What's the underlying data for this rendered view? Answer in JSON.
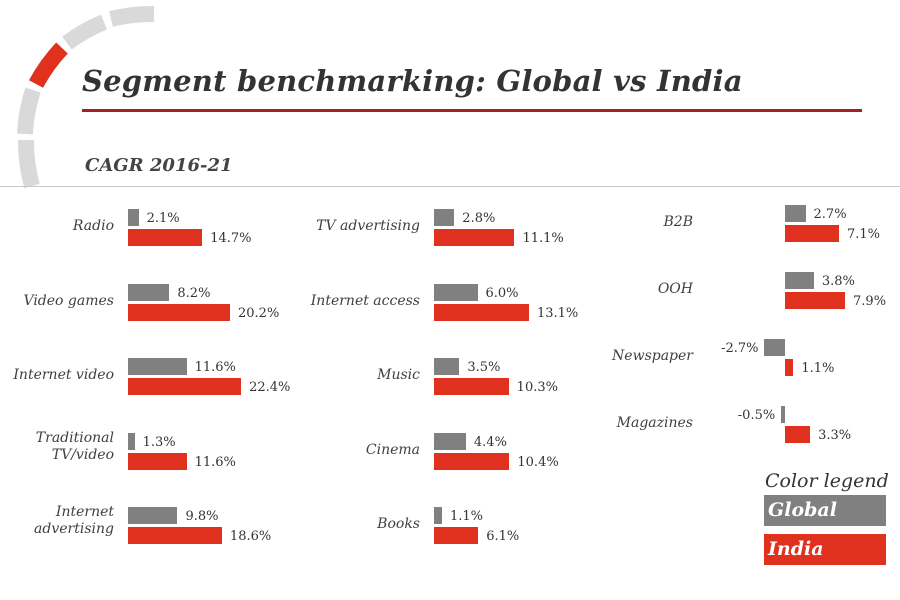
{
  "header": {
    "title": "Segment benchmarking:  Global vs India",
    "subtitle": "CAGR 2016-21"
  },
  "colors": {
    "global": "#808080",
    "india": "#e0301e",
    "title_rule": "#a32020",
    "arc_inactive": "#d9d9d9",
    "arc_active": "#e0301e"
  },
  "legend": {
    "title": "Color legend",
    "items": [
      {
        "label": "Global",
        "color": "#808080"
      },
      {
        "label": "India",
        "color": "#e0301e"
      }
    ]
  },
  "chart_data": {
    "type": "bar",
    "orientation": "horizontal",
    "title": "Segment benchmarking:  Global vs India",
    "subtitle": "CAGR 2016-21",
    "unit": "%",
    "series_names": [
      "Global",
      "India"
    ],
    "panels": [
      {
        "categories": [
          "Radio",
          "Video games",
          "Internet video",
          "Traditional TV/video",
          "Internet advertising"
        ],
        "label_lines": [
          [
            "Radio"
          ],
          [
            "Video games"
          ],
          [
            "Internet video"
          ],
          [
            "Traditional",
            "TV/video"
          ],
          [
            "Internet",
            "advertising"
          ]
        ],
        "series": [
          {
            "name": "Global",
            "values": [
              2.1,
              8.2,
              11.6,
              1.3,
              9.8
            ],
            "labels": [
              "2.1%",
              "8.2%",
              "11.6%",
              "1.3%",
              "9.8%"
            ]
          },
          {
            "name": "India",
            "values": [
              14.7,
              20.2,
              22.4,
              11.6,
              18.6
            ],
            "labels": [
              "14.7%",
              "20.2%",
              "22.4%",
              "11.6%",
              "18.6%"
            ]
          }
        ]
      },
      {
        "categories": [
          "TV advertising",
          "Internet access",
          "Music",
          "Cinema",
          "Books"
        ],
        "label_lines": [
          [
            "TV advertising"
          ],
          [
            "Internet access"
          ],
          [
            "Music"
          ],
          [
            "Cinema"
          ],
          [
            "Books"
          ]
        ],
        "series": [
          {
            "name": "Global",
            "values": [
              2.8,
              6.0,
              3.5,
              4.4,
              1.1
            ],
            "labels": [
              "2.8%",
              "6.0%",
              "3.5%",
              "4.4%",
              "1.1%"
            ]
          },
          {
            "name": "India",
            "values": [
              11.1,
              13.1,
              10.3,
              10.4,
              6.1
            ],
            "labels": [
              "11.1%",
              "13.1%",
              "10.3%",
              "10.4%",
              "6.1%"
            ]
          }
        ]
      },
      {
        "categories": [
          "B2B",
          "OOH",
          "Newspaper",
          "Magazines"
        ],
        "label_lines": [
          [
            "B2B"
          ],
          [
            "OOH"
          ],
          [
            "Newspaper"
          ],
          [
            "Magazines"
          ]
        ],
        "series": [
          {
            "name": "Global",
            "values": [
              2.7,
              3.8,
              -2.7,
              -0.5
            ],
            "labels": [
              "2.7%",
              "3.8%",
              "-2.7%",
              "-0.5%"
            ]
          },
          {
            "name": "India",
            "values": [
              7.1,
              7.9,
              1.1,
              3.3
            ],
            "labels": [
              "7.1%",
              "7.9%",
              "1.1%",
              "3.3%"
            ]
          }
        ]
      }
    ]
  }
}
